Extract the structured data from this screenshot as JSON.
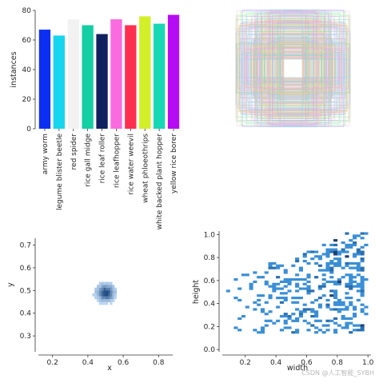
{
  "chart_data": [
    {
      "type": "bar",
      "categories": [
        "army worm",
        "legume blister beetle",
        "red spider",
        "rice gall midge",
        "rice leaf roller",
        "rice leafhopper",
        "rice water weevil",
        "wheat phloeothrips",
        "white backed plant hopper",
        "yellow rice borer"
      ],
      "values": [
        67,
        63,
        74,
        70,
        64,
        74,
        70,
        76,
        71,
        77
      ],
      "colors": [
        "#0d2ff2",
        "#16d6ef",
        "#f2f2f2",
        "#13cfa3",
        "#10205f",
        "#fb6be0",
        "#ff2f4f",
        "#d2ef2a",
        "#17d7b5",
        "#b60cf4"
      ],
      "ylabel": "instances",
      "ylim": [
        0,
        80
      ],
      "yticks": [
        0,
        20,
        40,
        60,
        80
      ],
      "grid": false
    },
    {
      "type": "box-overlay",
      "description_of_marks": "overlaid bounding boxes centered at 0.5,0.5",
      "axes_visible": false
    },
    {
      "type": "heatmap",
      "subtype": "2d-histogram",
      "xlabel": "x",
      "ylabel": "y",
      "xticks": [
        0.2,
        0.4,
        0.6,
        0.8
      ],
      "yticks": [
        0.3,
        0.4,
        0.5,
        0.6,
        0.7
      ],
      "xlim": [
        0.12,
        0.88
      ],
      "ylim": [
        0.23,
        0.73
      ],
      "center": [
        0.5,
        0.49
      ]
    },
    {
      "type": "heatmap",
      "subtype": "2d-histogram",
      "xlabel": "width",
      "ylabel": "height",
      "xticks": [
        0.2,
        0.4,
        0.6,
        0.8,
        1.0
      ],
      "yticks": [
        0.0,
        0.2,
        0.4,
        0.6,
        0.8,
        1.0
      ],
      "xlim": [
        0.05,
        1.02
      ],
      "ylim": [
        -0.02,
        1.03
      ]
    }
  ],
  "watermark": "CSDN @人工智能_SYBH"
}
